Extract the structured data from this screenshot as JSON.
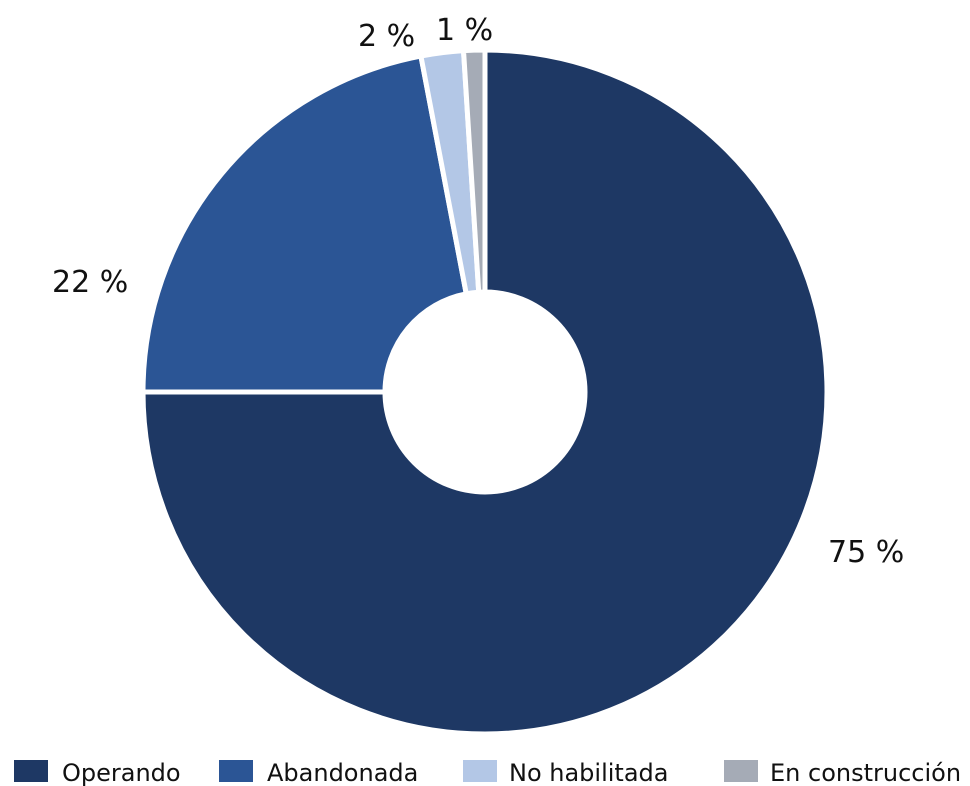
{
  "chart_data": {
    "type": "pie",
    "donut": true,
    "start_angle_deg": 0,
    "direction": "clockwise",
    "categories": [
      "Operando",
      "Abandonada",
      "No habilitada",
      "En construcción"
    ],
    "values": [
      75,
      22,
      2,
      1
    ],
    "labels": [
      "75 %",
      "22 %",
      "2 %",
      "1 %"
    ],
    "colors": [
      "#1e3864",
      "#2b5595",
      "#b3c7e6",
      "#a5abb6"
    ],
    "legend": {
      "position": "bottom",
      "entries": [
        "Operando",
        "Abandonada",
        "No habilitada",
        "En construcción"
      ]
    }
  }
}
